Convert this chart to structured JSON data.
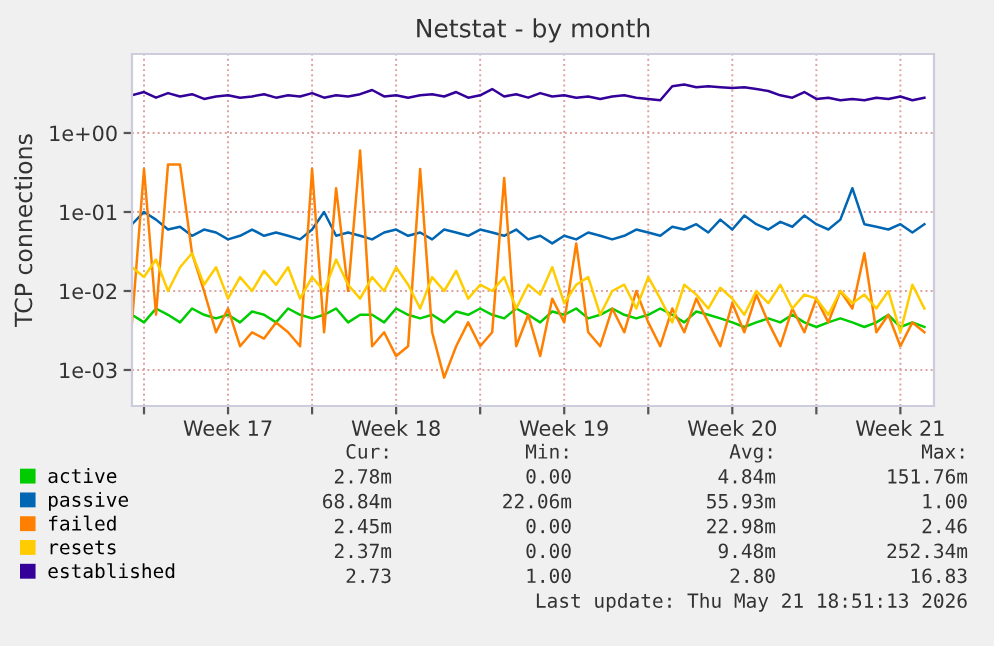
{
  "chart_data": {
    "type": "line",
    "title": "Netstat - by month",
    "ylabel": "TCP connections",
    "log": "y",
    "grid": true,
    "legend": "bottom",
    "marker": "none",
    "line_style": "solid",
    "ylim": [
      0.00035,
      10
    ],
    "yticks": [
      {
        "value": 0.001,
        "label": "1e-03"
      },
      {
        "value": 0.01,
        "label": "1e-02"
      },
      {
        "value": 0.1,
        "label": "1e-01"
      },
      {
        "value": 1,
        "label": "1e+00"
      }
    ],
    "xlim": [
      "2026-04-19T12:00",
      "2026-05-22T21:36"
    ],
    "xticks": [
      {
        "value": "2026-04-20",
        "label": null
      },
      {
        "value": "2026-04-23T12:00",
        "label": "Week 17"
      },
      {
        "value": "2026-04-27",
        "label": null
      },
      {
        "value": "2026-04-30T12:00",
        "label": "Week 18"
      },
      {
        "value": "2026-05-04",
        "label": null
      },
      {
        "value": "2026-05-07T12:00",
        "label": "Week 19"
      },
      {
        "value": "2026-05-11",
        "label": null
      },
      {
        "value": "2026-05-14T12:00",
        "label": "Week 20"
      },
      {
        "value": "2026-05-18",
        "label": null
      },
      {
        "value": "2026-05-21T12:00",
        "label": "Week 21"
      }
    ],
    "x": [
      "2026-04-19T12:00",
      "2026-04-20T00:00",
      "2026-04-20T12:00",
      "2026-04-21T00:00",
      "2026-04-21T12:00",
      "2026-04-22T00:00",
      "2026-04-22T12:00",
      "2026-04-23T00:00",
      "2026-04-23T12:00",
      "2026-04-24T00:00",
      "2026-04-24T12:00",
      "2026-04-25T00:00",
      "2026-04-25T12:00",
      "2026-04-26T00:00",
      "2026-04-26T12:00",
      "2026-04-27T00:00",
      "2026-04-27T12:00",
      "2026-04-28T00:00",
      "2026-04-28T12:00",
      "2026-04-29T00:00",
      "2026-04-29T12:00",
      "2026-04-30T00:00",
      "2026-04-30T12:00",
      "2026-05-01T00:00",
      "2026-05-01T12:00",
      "2026-05-02T00:00",
      "2026-05-02T12:00",
      "2026-05-03T00:00",
      "2026-05-03T12:00",
      "2026-05-04T00:00",
      "2026-05-04T12:00",
      "2026-05-05T00:00",
      "2026-05-05T12:00",
      "2026-05-06T00:00",
      "2026-05-06T12:00",
      "2026-05-07T00:00",
      "2026-05-07T12:00",
      "2026-05-08T00:00",
      "2026-05-08T12:00",
      "2026-05-09T00:00",
      "2026-05-09T12:00",
      "2026-05-10T00:00",
      "2026-05-10T12:00",
      "2026-05-11T00:00",
      "2026-05-11T12:00",
      "2026-05-12T00:00",
      "2026-05-12T12:00",
      "2026-05-13T00:00",
      "2026-05-13T12:00",
      "2026-05-14T00:00",
      "2026-05-14T12:00",
      "2026-05-15T00:00",
      "2026-05-15T12:00",
      "2026-05-16T00:00",
      "2026-05-16T12:00",
      "2026-05-17T00:00",
      "2026-05-17T12:00",
      "2026-05-18T00:00",
      "2026-05-18T12:00",
      "2026-05-19T00:00",
      "2026-05-19T12:00",
      "2026-05-20T00:00",
      "2026-05-20T12:00",
      "2026-05-21T00:00",
      "2026-05-21T12:00",
      "2026-05-22T00:00",
      "2026-05-22T12:00"
    ],
    "series": [
      {
        "name": "active",
        "color": "#00cc00",
        "values": [
          0.005,
          0.004,
          0.006,
          0.005,
          0.004,
          0.006,
          0.005,
          0.0045,
          0.005,
          0.004,
          0.0055,
          0.005,
          0.004,
          0.006,
          0.005,
          0.0045,
          0.005,
          0.006,
          0.004,
          0.005,
          0.005,
          0.004,
          0.006,
          0.005,
          0.0045,
          0.005,
          0.004,
          0.0055,
          0.005,
          0.006,
          0.005,
          0.0045,
          0.006,
          0.005,
          0.004,
          0.0055,
          0.005,
          0.006,
          0.0045,
          0.005,
          0.006,
          0.005,
          0.0045,
          0.005,
          0.006,
          0.005,
          0.004,
          0.0055,
          0.005,
          0.0045,
          0.004,
          0.0035,
          0.004,
          0.0045,
          0.004,
          0.005,
          0.004,
          0.0035,
          0.004,
          0.0045,
          0.004,
          0.0035,
          0.004,
          0.005,
          0.0035,
          0.004,
          0.0035
        ]
      },
      {
        "name": "passive",
        "color": "#0066b3",
        "values": [
          0.07,
          0.1,
          0.08,
          0.06,
          0.065,
          0.05,
          0.06,
          0.055,
          0.045,
          0.05,
          0.06,
          0.05,
          0.055,
          0.05,
          0.045,
          0.06,
          0.1,
          0.05,
          0.055,
          0.05,
          0.045,
          0.055,
          0.06,
          0.05,
          0.055,
          0.045,
          0.06,
          0.055,
          0.05,
          0.06,
          0.055,
          0.05,
          0.06,
          0.045,
          0.05,
          0.04,
          0.05,
          0.045,
          0.055,
          0.05,
          0.045,
          0.05,
          0.06,
          0.055,
          0.05,
          0.065,
          0.06,
          0.07,
          0.055,
          0.08,
          0.06,
          0.09,
          0.07,
          0.06,
          0.075,
          0.065,
          0.09,
          0.07,
          0.06,
          0.08,
          0.2,
          0.07,
          0.065,
          0.06,
          0.07,
          0.055,
          0.07
        ]
      },
      {
        "name": "failed",
        "color": "#ff8000",
        "values": [
          0.004,
          0.35,
          0.005,
          0.4,
          0.4,
          0.03,
          0.01,
          0.003,
          0.006,
          0.002,
          0.003,
          0.0025,
          0.004,
          0.003,
          0.002,
          0.35,
          0.003,
          0.2,
          0.01,
          0.6,
          0.002,
          0.003,
          0.0015,
          0.002,
          0.35,
          0.003,
          0.0008,
          0.002,
          0.004,
          0.002,
          0.003,
          0.27,
          0.002,
          0.005,
          0.0015,
          0.008,
          0.004,
          0.04,
          0.003,
          0.002,
          0.006,
          0.003,
          0.01,
          0.004,
          0.002,
          0.006,
          0.003,
          0.008,
          0.004,
          0.002,
          0.007,
          0.003,
          0.009,
          0.004,
          0.002,
          0.006,
          0.003,
          0.008,
          0.004,
          0.01,
          0.006,
          0.03,
          0.003,
          0.005,
          0.002,
          0.004,
          0.003
        ]
      },
      {
        "name": "resets",
        "color": "#ffcc00",
        "values": [
          0.02,
          0.015,
          0.025,
          0.01,
          0.02,
          0.03,
          0.012,
          0.02,
          0.008,
          0.015,
          0.01,
          0.018,
          0.012,
          0.02,
          0.008,
          0.015,
          0.01,
          0.025,
          0.012,
          0.008,
          0.015,
          0.01,
          0.02,
          0.012,
          0.006,
          0.015,
          0.01,
          0.018,
          0.008,
          0.012,
          0.01,
          0.015,
          0.006,
          0.012,
          0.009,
          0.02,
          0.007,
          0.012,
          0.015,
          0.005,
          0.01,
          0.012,
          0.006,
          0.015,
          0.008,
          0.004,
          0.012,
          0.009,
          0.006,
          0.011,
          0.008,
          0.005,
          0.01,
          0.007,
          0.012,
          0.006,
          0.009,
          0.008,
          0.005,
          0.01,
          0.007,
          0.009,
          0.006,
          0.01,
          0.003,
          0.012,
          0.006
        ]
      },
      {
        "name": "established",
        "color": "#330099",
        "values": [
          3.0,
          3.3,
          2.8,
          3.2,
          2.9,
          3.1,
          2.7,
          2.9,
          3.0,
          2.8,
          2.9,
          3.1,
          2.8,
          3.0,
          2.9,
          3.2,
          2.8,
          3.0,
          2.9,
          3.1,
          3.5,
          2.9,
          3.0,
          2.8,
          3.0,
          3.1,
          2.9,
          3.3,
          2.8,
          3.0,
          3.6,
          2.9,
          3.1,
          2.8,
          3.2,
          2.9,
          3.0,
          2.8,
          2.9,
          2.7,
          2.9,
          3.0,
          2.8,
          2.7,
          2.6,
          3.9,
          4.1,
          3.8,
          3.9,
          3.8,
          3.7,
          3.8,
          3.6,
          3.4,
          3.0,
          2.8,
          3.3,
          2.7,
          2.8,
          2.6,
          2.7,
          2.6,
          2.8,
          2.7,
          2.9,
          2.6,
          2.8
        ]
      }
    ],
    "annotations": [
      "Cur:",
      "Min:",
      "Avg:",
      "Max:",
      "2.78m",
      "0.00",
      "4.84m",
      "151.76m",
      "68.84m",
      "22.06m",
      "55.93m",
      "1.00",
      "2.45m",
      "0.00",
      "22.98m",
      "2.46",
      "2.37m",
      "0.00",
      "9.48m",
      "252.34m",
      "2.73",
      "1.00",
      "2.80",
      "16.83",
      "Last update: Thu May 21 18:51:13 2026"
    ]
  }
}
